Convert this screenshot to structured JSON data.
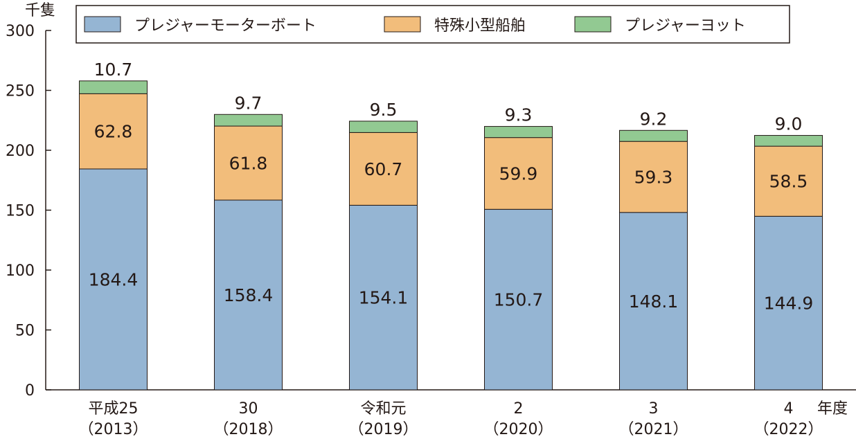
{
  "chart_data": {
    "type": "bar",
    "stacked": true,
    "unit_label": "千隻",
    "x_axis_suffix": "年度",
    "categories": [
      {
        "label": "平成25",
        "year": "（2013）"
      },
      {
        "label": "30",
        "year": "（2018）"
      },
      {
        "label": "令和元",
        "year": "（2019）"
      },
      {
        "label": "2",
        "year": "（2020）"
      },
      {
        "label": "3",
        "year": "（2021）"
      },
      {
        "label": "4",
        "year": "（2022）"
      }
    ],
    "series": [
      {
        "name": "プレジャーモーターボート",
        "color": "#95b5d3",
        "values": [
          184.4,
          158.4,
          154.1,
          150.7,
          148.1,
          144.9
        ],
        "labels": [
          "184.4",
          "158.4",
          "154.1",
          "150.7",
          "148.1",
          "144.9"
        ]
      },
      {
        "name": "特殊小型船舶",
        "color": "#f2bd7b",
        "values": [
          62.8,
          61.8,
          60.7,
          59.9,
          59.3,
          58.5
        ],
        "labels": [
          "62.8",
          "61.8",
          "60.7",
          "59.9",
          "59.3",
          "58.5"
        ]
      },
      {
        "name": "プレジャーヨット",
        "color": "#92c992",
        "values": [
          10.7,
          9.7,
          9.5,
          9.3,
          9.2,
          9.0
        ],
        "labels": [
          "10.7",
          "9.7",
          "9.5",
          "9.3",
          "9.2",
          "9.0"
        ]
      }
    ],
    "ylim": [
      0,
      300
    ],
    "yticks": [
      0,
      50,
      100,
      150,
      200,
      250,
      300
    ],
    "grid": false,
    "legend_position": "top"
  }
}
